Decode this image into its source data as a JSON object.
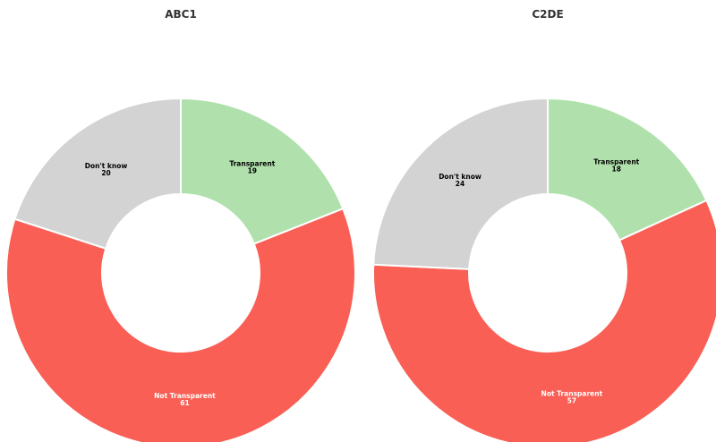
{
  "chart_data": [
    {
      "type": "donut",
      "title": "ABC1",
      "categories": [
        "Transparent",
        "Not Transparent",
        "Don't know"
      ],
      "values": [
        19,
        61,
        20
      ],
      "colors": [
        "#b0e1ad",
        "#f95f55",
        "#d3d3d3"
      ],
      "label_colors": [
        "#000000",
        "#ffffff",
        "#000000"
      ]
    },
    {
      "type": "donut",
      "title": "C2DE",
      "categories": [
        "Transparent",
        "Not Transparent",
        "Don't know"
      ],
      "values": [
        18,
        57,
        24
      ],
      "colors": [
        "#b0e1ad",
        "#f95f55",
        "#d3d3d3"
      ],
      "label_colors": [
        "#000000",
        "#ffffff",
        "#000000"
      ]
    }
  ]
}
